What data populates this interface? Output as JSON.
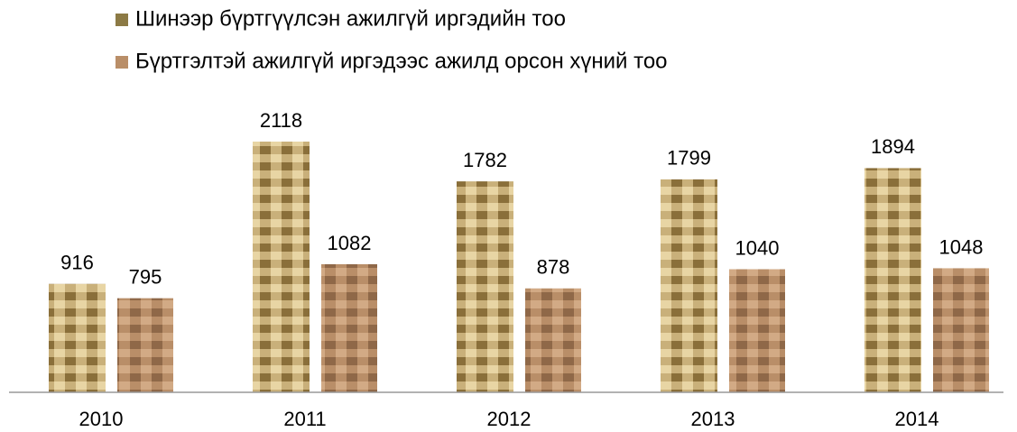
{
  "chart_data": {
    "type": "bar",
    "categories": [
      "2010",
      "2011",
      "2012",
      "2013",
      "2014"
    ],
    "series": [
      {
        "name": "Шинээр бүртгүүлсэн ажилгүй иргэдийн тоо",
        "color": "#8c7a45",
        "values": [
          916,
          2118,
          1782,
          1799,
          1894
        ]
      },
      {
        "name": "Бүртгэлтэй ажилгүй иргэдээс ажилд орсон хүний тоо",
        "color": "#b98e68",
        "values": [
          795,
          1082,
          878,
          1040,
          1048
        ]
      }
    ]
  }
}
